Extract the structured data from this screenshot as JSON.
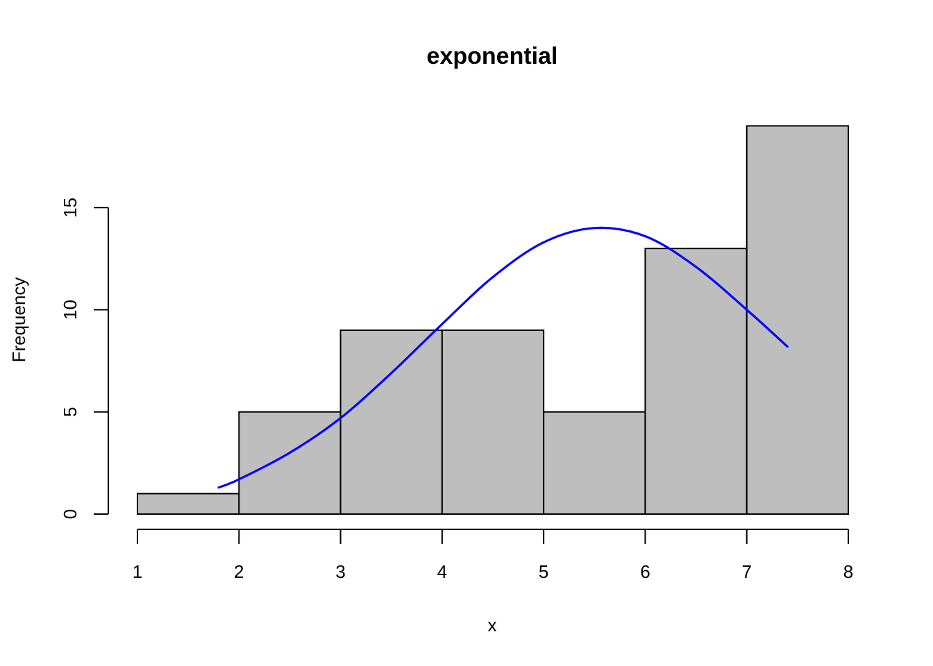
{
  "chart_data": {
    "type": "bar",
    "title": "exponential",
    "xlabel": "x",
    "ylabel": "Frequency",
    "bins": [
      {
        "from": 1,
        "to": 2,
        "count": 1
      },
      {
        "from": 2,
        "to": 3,
        "count": 5
      },
      {
        "from": 3,
        "to": 4,
        "count": 9
      },
      {
        "from": 4,
        "to": 5,
        "count": 9
      },
      {
        "from": 5,
        "to": 6,
        "count": 5
      },
      {
        "from": 6,
        "to": 7,
        "count": 13
      },
      {
        "from": 7,
        "to": 8,
        "count": 19
      }
    ],
    "xlim": [
      1,
      8
    ],
    "ylim": [
      0,
      19
    ],
    "xticks": [
      "1",
      "2",
      "3",
      "4",
      "5",
      "6",
      "7",
      "8"
    ],
    "yticks": [
      "0",
      "5",
      "10",
      "15"
    ],
    "fit_curve": {
      "color": "#0000ff",
      "x": [
        1.8,
        2.0,
        2.5,
        3.0,
        3.5,
        4.0,
        4.5,
        5.0,
        5.5,
        6.0,
        6.5,
        7.0,
        7.4
      ],
      "y": [
        1.3,
        1.7,
        3.0,
        4.7,
        6.9,
        9.3,
        11.6,
        13.3,
        14.0,
        13.6,
        12.1,
        10.0,
        8.2
      ]
    },
    "bar_fill": "#bebebe",
    "grid": false
  }
}
